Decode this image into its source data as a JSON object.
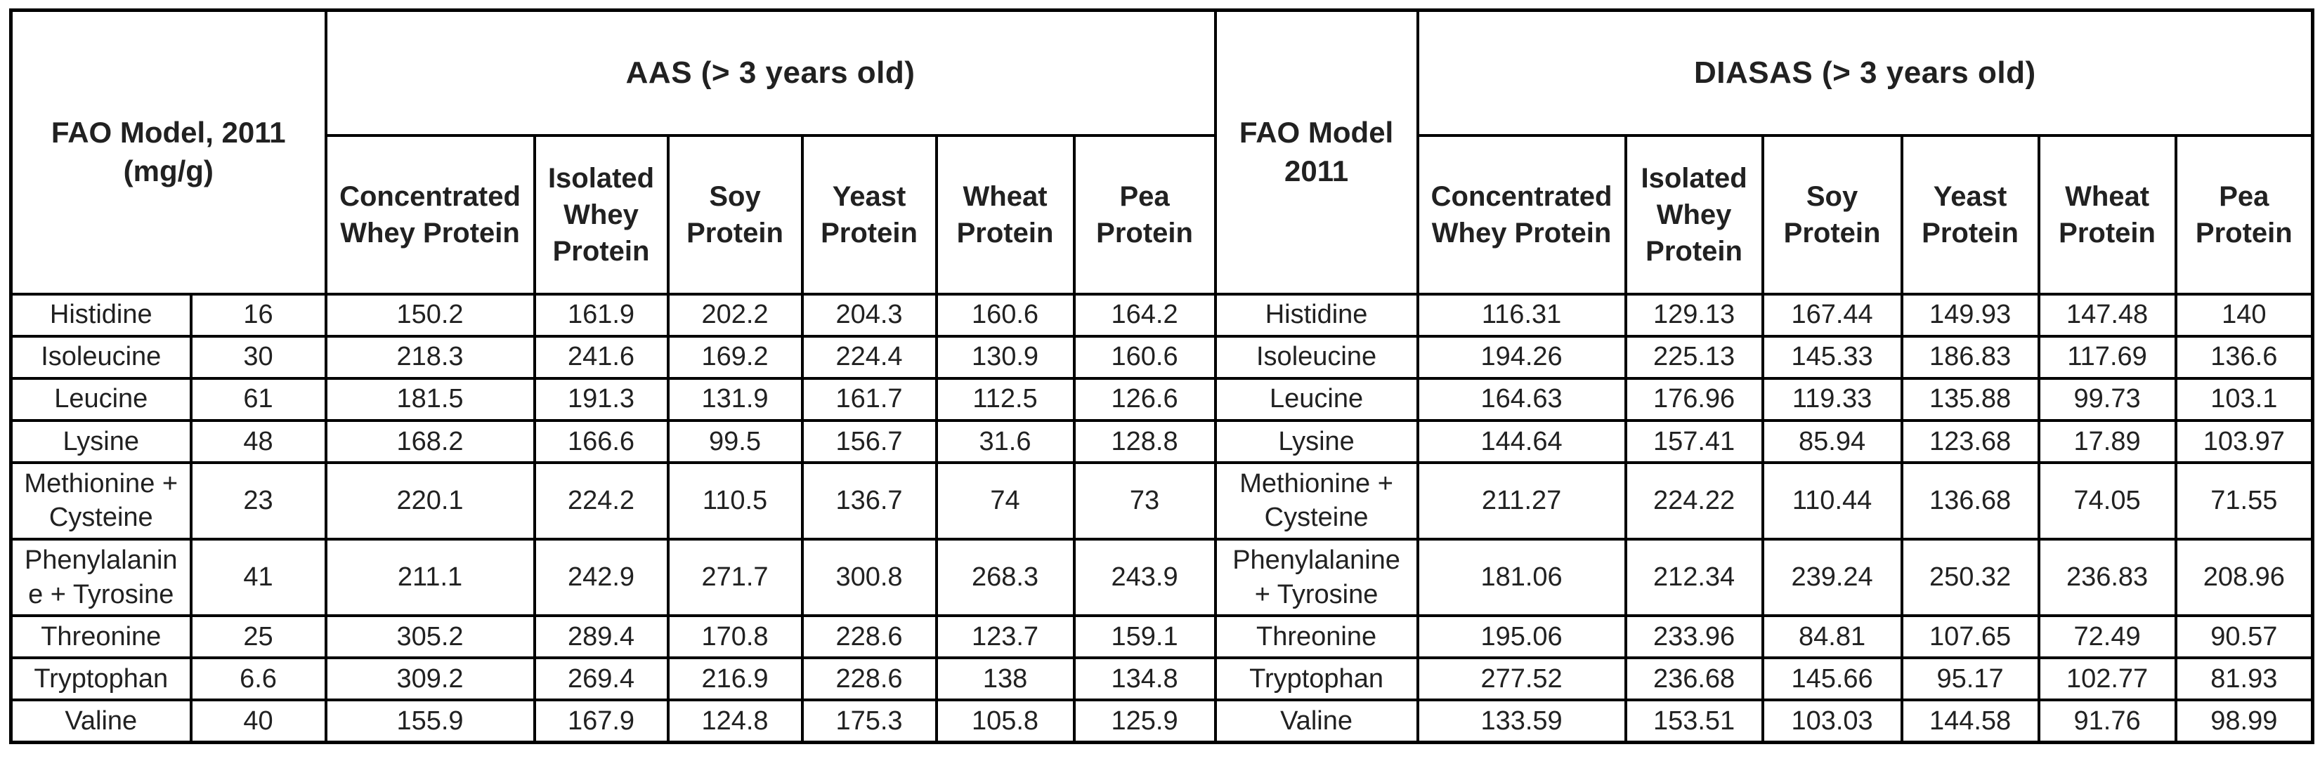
{
  "chart_data": {
    "type": "table",
    "headers": {
      "fao_left": [
        "FAO Model, 2011",
        "(mg/g)"
      ],
      "aas_group": "AAS (> 3 years old)",
      "fao_mid": [
        "FAO Model",
        "2011"
      ],
      "diasas_group": "DIASAS (> 3 years old)",
      "protein_columns": [
        "Concentrated Whey Protein",
        "Isolated Whey Protein",
        "Soy Protein",
        "Yeast Protein",
        "Wheat Protein",
        "Pea Protein"
      ]
    },
    "rows": [
      {
        "amino_acid": "Histidine",
        "fao_requirement": 16,
        "aas": [
          150.2,
          161.9,
          202.2,
          204.3,
          160.6,
          164.2
        ],
        "diasas": [
          116.31,
          129.13,
          167.44,
          149.93,
          147.48,
          140
        ]
      },
      {
        "amino_acid": "Isoleucine",
        "fao_requirement": 30,
        "aas": [
          218.3,
          241.6,
          169.2,
          224.4,
          130.9,
          160.6
        ],
        "diasas": [
          194.26,
          225.13,
          145.33,
          186.83,
          117.69,
          136.6
        ]
      },
      {
        "amino_acid": "Leucine",
        "fao_requirement": 61,
        "aas": [
          181.5,
          191.3,
          131.9,
          161.7,
          112.5,
          126.6
        ],
        "diasas": [
          164.63,
          176.96,
          119.33,
          135.88,
          99.73,
          103.1
        ]
      },
      {
        "amino_acid": "Lysine",
        "fao_requirement": 48,
        "aas": [
          168.2,
          166.6,
          99.5,
          156.7,
          31.6,
          128.8
        ],
        "diasas": [
          144.64,
          157.41,
          85.94,
          123.68,
          17.89,
          103.97
        ]
      },
      {
        "amino_acid": "Methionine + Cysteine",
        "fao_requirement": 23,
        "aas": [
          220.1,
          224.2,
          110.5,
          136.7,
          74,
          73
        ],
        "diasas": [
          211.27,
          224.22,
          110.44,
          136.68,
          74.05,
          71.55
        ]
      },
      {
        "amino_acid": "Phenylalanine + Tyrosine",
        "fao_requirement": 41,
        "aas": [
          211.1,
          242.9,
          271.7,
          300.8,
          268.3,
          243.9
        ],
        "diasas": [
          181.06,
          212.34,
          239.24,
          250.32,
          236.83,
          208.96
        ]
      },
      {
        "amino_acid": "Threonine",
        "fao_requirement": 25,
        "aas": [
          305.2,
          289.4,
          170.8,
          228.6,
          123.7,
          159.1
        ],
        "diasas": [
          195.06,
          233.96,
          84.81,
          107.65,
          72.49,
          90.57
        ]
      },
      {
        "amino_acid": "Tryptophan",
        "fao_requirement": 6.6,
        "aas": [
          309.2,
          269.4,
          216.9,
          228.6,
          138,
          134.8
        ],
        "diasas": [
          277.52,
          236.68,
          145.66,
          95.17,
          102.77,
          81.93
        ]
      },
      {
        "amino_acid": "Valine",
        "fao_requirement": 40,
        "aas": [
          155.9,
          167.9,
          124.8,
          175.3,
          105.8,
          125.9
        ],
        "diasas": [
          133.59,
          153.51,
          103.03,
          144.58,
          91.76,
          98.99
        ]
      }
    ]
  },
  "colors": {
    "background": "#ffffff",
    "border": "#000000",
    "text": "#212121"
  }
}
